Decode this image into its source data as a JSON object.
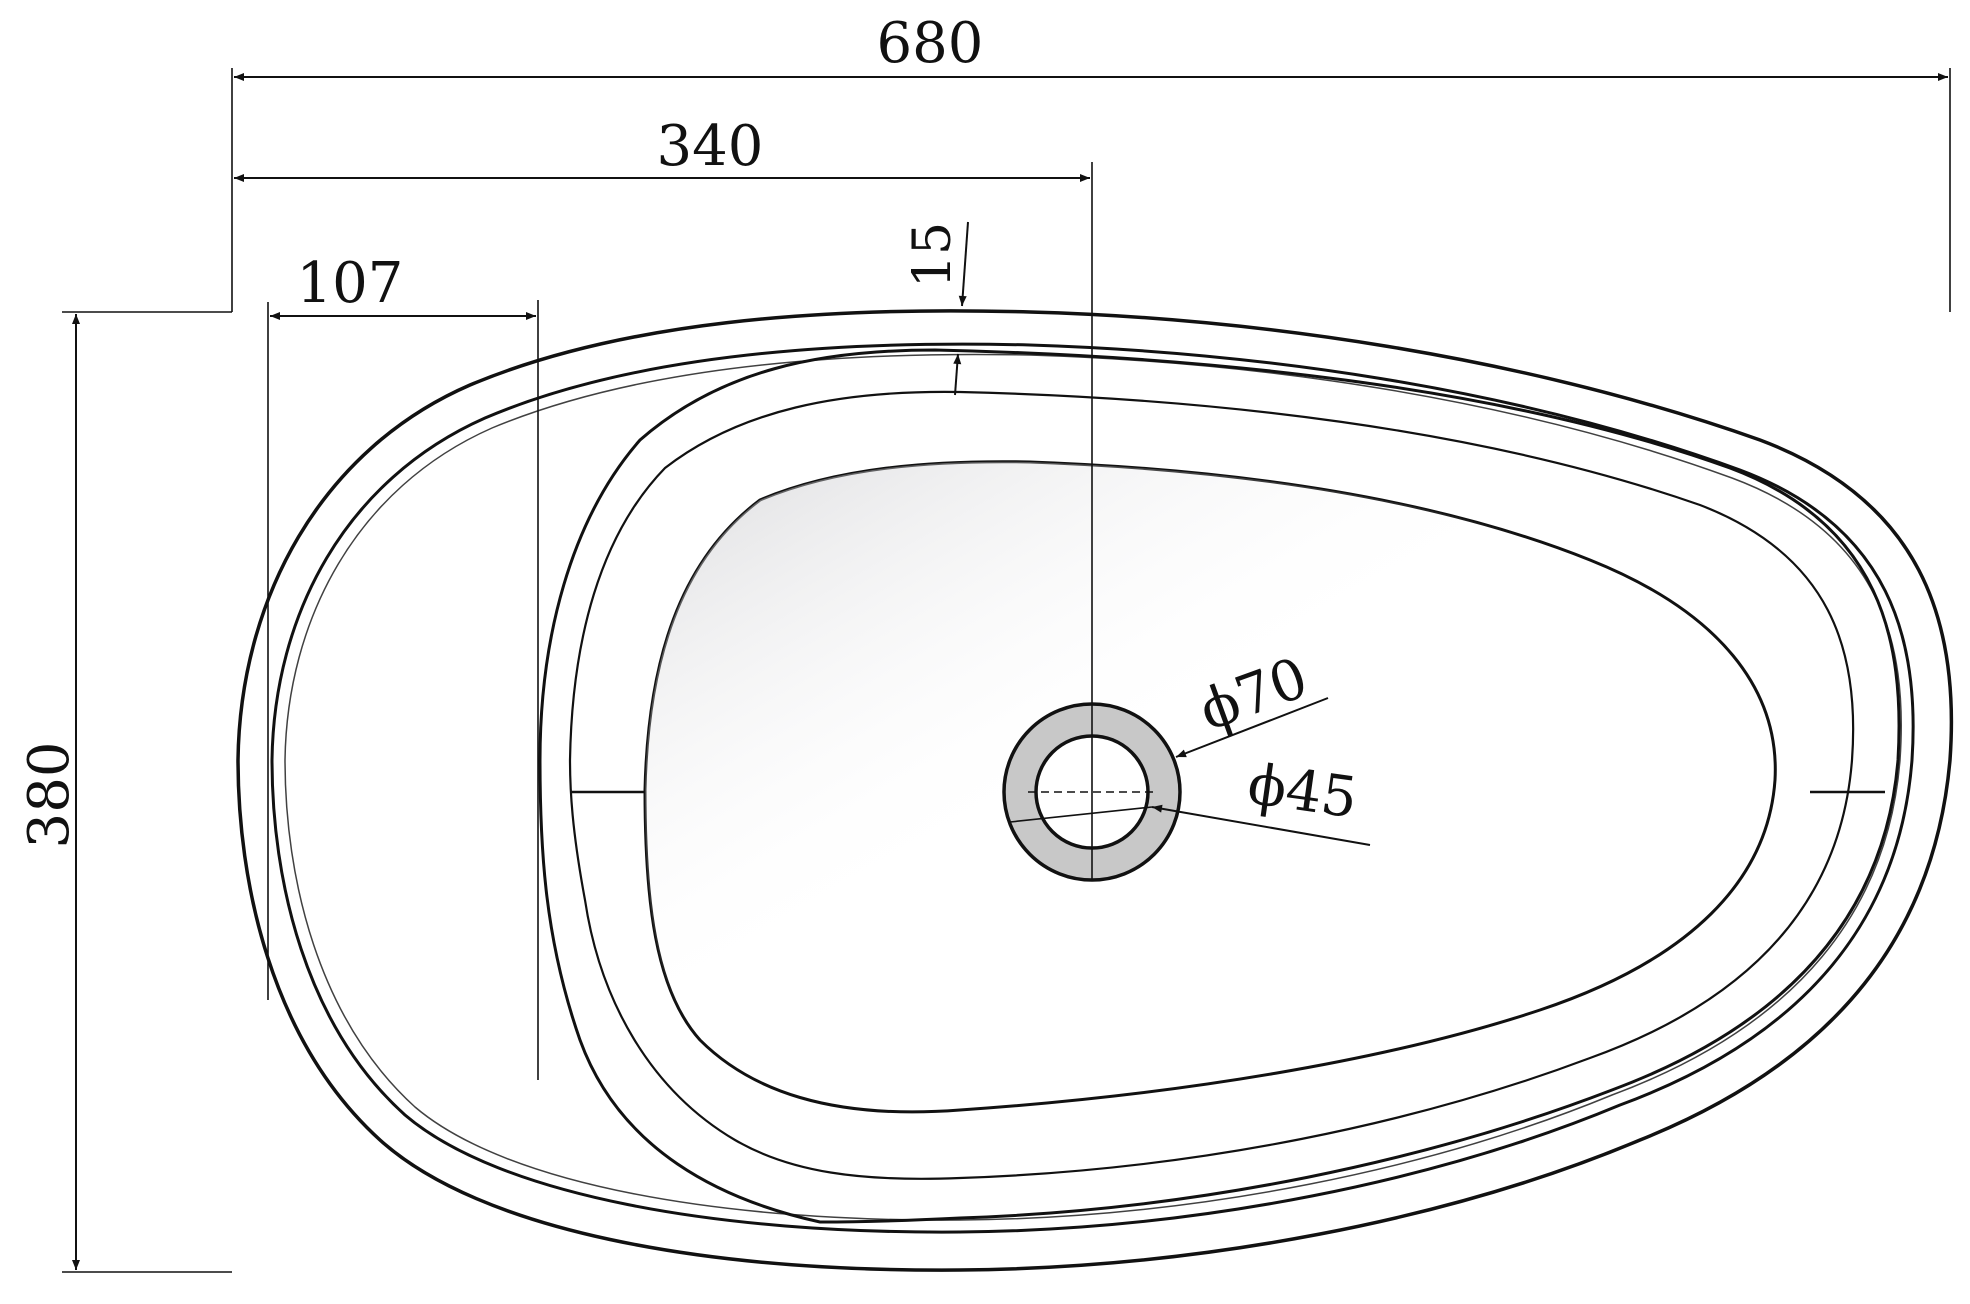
{
  "drawing": {
    "dimensions": {
      "overall_width": "680",
      "half_width": "340",
      "rim_offset": "107",
      "rim_thickness": "15",
      "overall_depth": "380",
      "outer_drain_diameter": "ϕ70",
      "inner_drain_diameter": "ϕ45"
    },
    "colors": {
      "line": "#111111",
      "rim_fill": "#d0d0d0",
      "deck_fill": "#c8c8c8",
      "bowl_highlight": "#ffffff",
      "bowl_shadow": "#a8a8a8",
      "accent_purple": "#c9a8d8"
    }
  }
}
